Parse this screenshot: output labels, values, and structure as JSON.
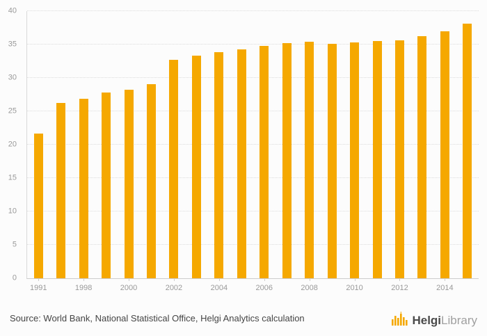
{
  "chart_data": {
    "type": "bar",
    "title": "",
    "xlabel": "",
    "ylabel": "",
    "categories": [
      "1991",
      "1997",
      "1998",
      "1999",
      "2000",
      "2001",
      "2002",
      "2003",
      "2004",
      "2005",
      "2006",
      "2007",
      "2008",
      "2009",
      "2010",
      "2011",
      "2012",
      "2013",
      "2014",
      "2015"
    ],
    "values": [
      21.7,
      26.3,
      26.9,
      27.8,
      28.2,
      29.1,
      32.7,
      33.3,
      33.9,
      34.3,
      34.8,
      35.2,
      35.4,
      35.1,
      35.3,
      35.5,
      35.6,
      36.3,
      37.0,
      38.1
    ],
    "x_tick_labels": [
      "1991",
      "1998",
      "2000",
      "2002",
      "2004",
      "2006",
      "2008",
      "2010",
      "2012",
      "2014"
    ],
    "yticks": [
      0,
      5,
      10,
      15,
      20,
      25,
      30,
      35,
      40
    ],
    "ylim": [
      0,
      40
    ],
    "grid": true,
    "legend": false,
    "bar_color": "#F5A800",
    "grid_color": "#dcdcdc",
    "tick_label_color": "#999999"
  },
  "footer": {
    "source": "Source: World Bank, National Statistical Office, Helgi Analytics calculation",
    "logo": {
      "brand_bold": "Helgi",
      "brand_light": "Library",
      "icon": "helgi-bars-icon",
      "icon_color": "#F5A800"
    }
  }
}
